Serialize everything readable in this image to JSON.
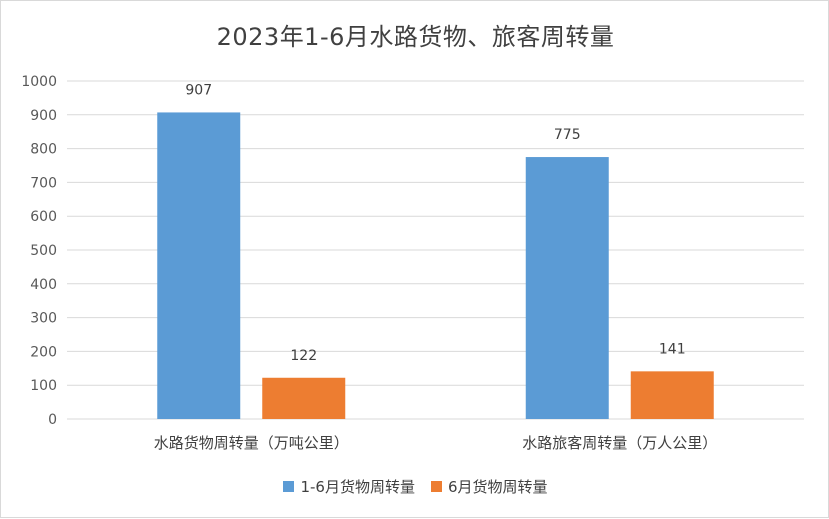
{
  "chart_data": {
    "type": "bar",
    "title": "2023年1-6月水路货物、旅客周转量",
    "categories": [
      "水路货物周转量（万吨公里）",
      "水路旅客周转量（万人公里）"
    ],
    "series": [
      {
        "name": "1-6月货物周转量",
        "values": [
          907,
          775
        ],
        "color": "#5b9bd5"
      },
      {
        "name": "6月货物周转量",
        "values": [
          122,
          141
        ],
        "color": "#ed7d31"
      }
    ],
    "ylim": [
      0,
      1000
    ],
    "yticks": [
      0,
      100,
      200,
      300,
      400,
      500,
      600,
      700,
      800,
      900,
      1000
    ],
    "grid": true,
    "legend": "bottom",
    "data_labels": true
  }
}
